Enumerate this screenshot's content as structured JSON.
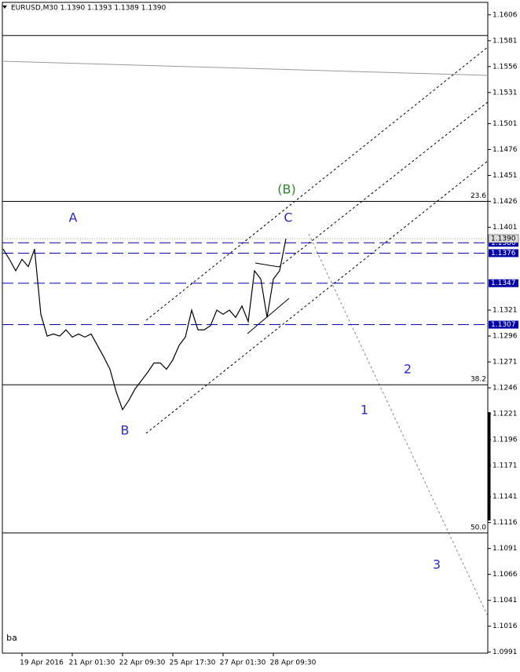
{
  "chart_data": {
    "type": "line",
    "title": "EURUSD,M30  1.1390 1.1393 1.1389 1.1390",
    "categories": [
      null,
      null,
      null,
      "19 Apr 2016",
      null,
      null,
      null,
      null,
      null,
      null,
      null,
      "21 Apr 01:30",
      null,
      null,
      null,
      null,
      null,
      null,
      null,
      "22 Apr 09:30",
      null,
      null,
      null,
      null,
      null,
      null,
      null,
      "25 Apr 17:30",
      null,
      null,
      null,
      null,
      null,
      null,
      null,
      "27 Apr 01:30",
      null,
      null,
      null,
      null,
      null,
      null,
      null,
      "28 Apr 09:30",
      null,
      null
    ],
    "values": [
      1.138,
      1.137,
      1.1359,
      1.137,
      1.1363,
      1.138,
      1.1317,
      1.1296,
      1.1298,
      1.1296,
      1.1302,
      1.1295,
      1.1298,
      1.1295,
      1.1298,
      1.1287,
      1.1276,
      1.1264,
      1.1242,
      1.1225,
      1.1234,
      1.1245,
      1.1253,
      1.1261,
      1.127,
      1.127,
      1.1264,
      1.1273,
      1.1287,
      1.1295,
      1.1321,
      1.1302,
      1.1302,
      1.1306,
      1.1321,
      1.1317,
      1.1321,
      1.1314,
      1.1325,
      1.131,
      1.1359,
      1.1351,
      1.1314,
      1.1351,
      1.1359,
      1.139
    ],
    "color": "#000000",
    "ylim": [
      1.099,
      1.1618
    ],
    "yticks": [
      1.1606,
      1.1581,
      1.1556,
      1.1531,
      1.1501,
      1.1476,
      1.1451,
      1.1426,
      1.1401,
      1.1321,
      1.1296,
      1.1271,
      1.1246,
      1.1221,
      1.1196,
      1.1171,
      1.1141,
      1.1116,
      1.1091,
      1.1066,
      1.1041,
      1.1016,
      1.0991
    ],
    "current_price": {
      "value": 1.139,
      "label": "1.1390"
    },
    "price_lines": [
      1.1386,
      1.1376,
      1.1347,
      1.1307
    ],
    "fib_levels": [
      {
        "value": 1.1426,
        "label": "23.6"
      },
      {
        "value": 1.1249,
        "label": "38.2"
      },
      {
        "value": 1.1106,
        "label": "50.0"
      }
    ],
    "h_lines": [
      1.1586
    ],
    "annotations": [
      "A",
      "B",
      "C",
      "(B)",
      "1",
      "2",
      "3",
      "ba"
    ]
  }
}
